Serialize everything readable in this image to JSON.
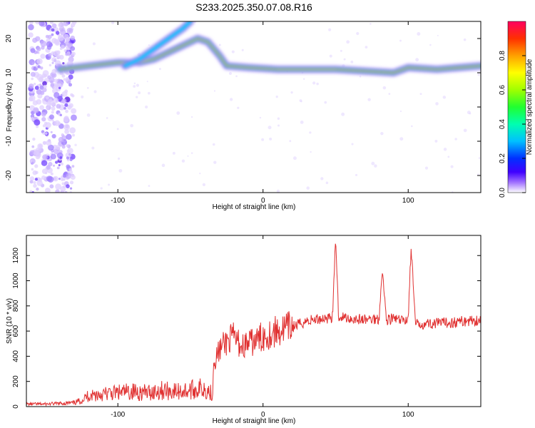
{
  "figure_title": "S233.2025.350.07.08.R16",
  "chart_data": [
    {
      "type": "heatmap",
      "title": "S233.2025.350.07.08.R16",
      "xlabel": "Height of straight line (km)",
      "ylabel": "Frequency (Hz)",
      "xlim": [
        -163,
        150
      ],
      "ylim": [
        -25,
        25
      ],
      "xticks": [
        -100,
        0,
        100
      ],
      "yticks": [
        -20,
        -10,
        0,
        10,
        20
      ],
      "colorbar": {
        "label": "Normalized spectral amplitude",
        "range": [
          0,
          1
        ],
        "ticks": [
          0.0,
          0.2,
          0.4,
          0.6,
          0.8
        ]
      },
      "ridges": [
        {
          "points": [
            [
              -140,
              11
            ],
            [
              -120,
              12
            ],
            [
              -100,
              13
            ],
            [
              -85,
              13
            ],
            [
              -75,
              14
            ],
            [
              -65,
              16
            ],
            [
              -55,
              18
            ],
            [
              -45,
              20
            ],
            [
              -38,
              19
            ],
            [
              -30,
              15
            ],
            [
              -25,
              12
            ],
            [
              -10,
              11.5
            ],
            [
              10,
              11
            ],
            [
              30,
              11
            ],
            [
              50,
              11
            ],
            [
              70,
              10.5
            ],
            [
              90,
              10
            ],
            [
              100,
              11.5
            ],
            [
              120,
              11
            ],
            [
              150,
              12
            ]
          ]
        },
        {
          "points": [
            [
              -95,
              12
            ],
            [
              -85,
              14
            ],
            [
              -75,
              17
            ],
            [
              -65,
              20
            ],
            [
              -55,
              23
            ],
            [
              -50,
              25
            ]
          ]
        }
      ]
    },
    {
      "type": "line",
      "xlabel": "Height of straight line (km)",
      "ylabel": "SNR (10 * v/v)",
      "xlim": [
        -163,
        150
      ],
      "ylim": [
        0,
        1360
      ],
      "xticks": [
        -100,
        0,
        100
      ],
      "yticks": [
        0,
        200,
        400,
        600,
        800,
        1000,
        1200
      ],
      "series": [
        {
          "color": "#e03030",
          "x": [
            -163,
            -150,
            -140,
            -130,
            -125,
            -120,
            -110,
            -100,
            -90,
            -80,
            -70,
            -60,
            -50,
            -45,
            -40,
            -35,
            -34,
            -30,
            -25,
            -20,
            -15,
            -10,
            -5,
            0,
            10,
            20,
            30,
            40,
            48,
            50,
            52,
            60,
            70,
            80,
            82,
            85,
            90,
            95,
            100,
            102,
            105,
            110,
            120,
            130,
            140,
            150
          ],
          "y": [
            20,
            20,
            25,
            30,
            50,
            90,
            100,
            110,
            120,
            110,
            130,
            120,
            130,
            140,
            150,
            100,
            350,
            450,
            520,
            550,
            480,
            500,
            520,
            560,
            600,
            630,
            680,
            700,
            710,
            1360,
            720,
            700,
            690,
            700,
            1100,
            690,
            700,
            680,
            700,
            1270,
            650,
            660,
            660,
            670,
            680,
            690
          ]
        }
      ]
    }
  ]
}
